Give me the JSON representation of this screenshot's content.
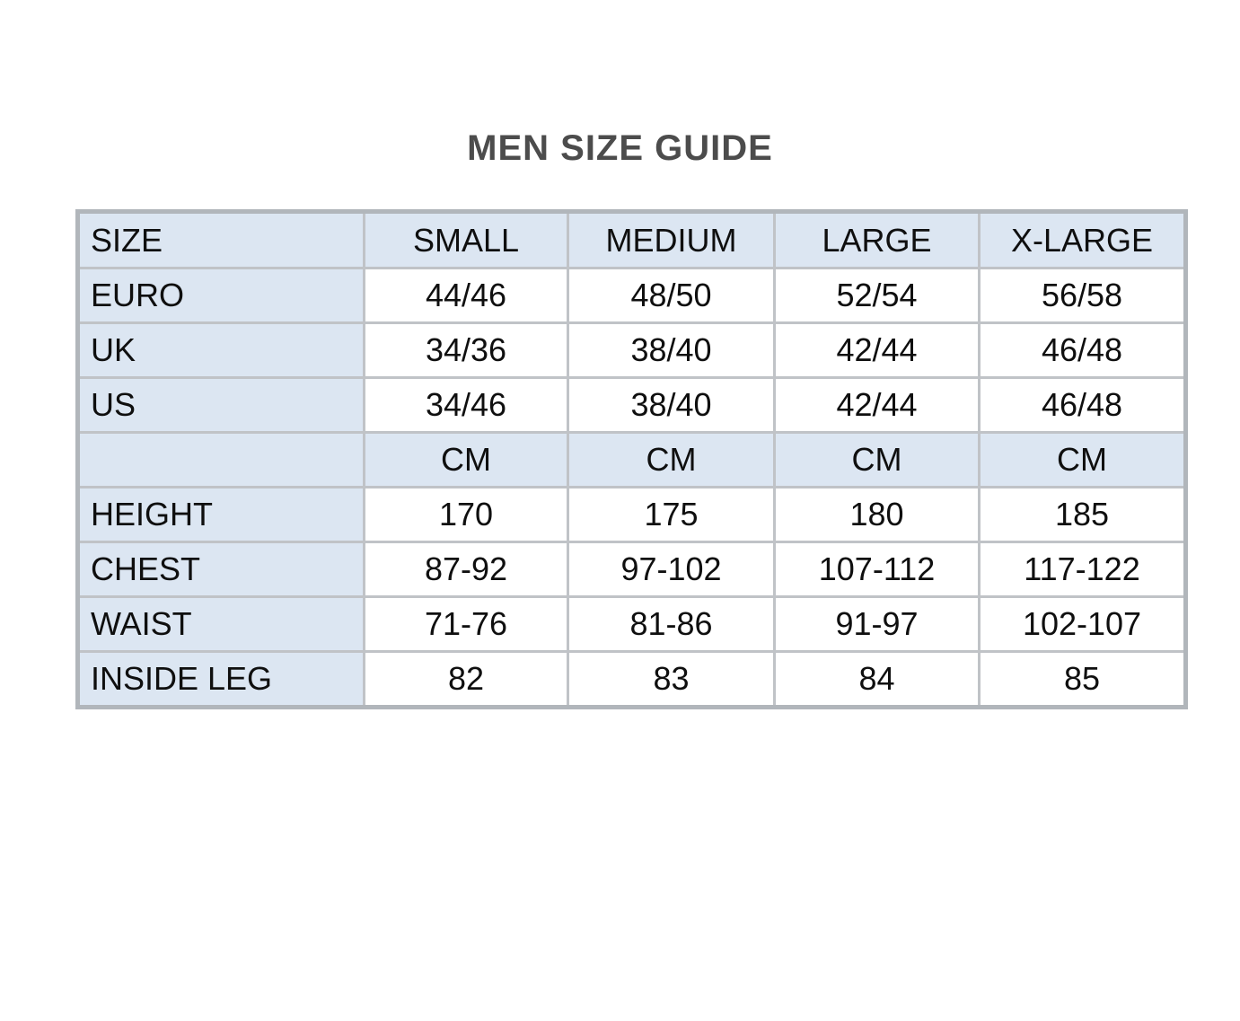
{
  "title": "MEN SIZE GUIDE",
  "colors": {
    "accent_bg": "#dce6f2",
    "cell_bg": "#ffffff",
    "border_inner": "#c0c3c7",
    "border_outer": "#b1b6bb",
    "text": "#0f0f0f",
    "title": "#4c4c4c",
    "page_bg": "#ffffff"
  },
  "chart_data": {
    "type": "table",
    "title": "MEN SIZE GUIDE",
    "columns": [
      "SIZE",
      "SMALL",
      "MEDIUM",
      "LARGE",
      "X-LARGE"
    ],
    "rows": [
      {
        "label": "EURO",
        "values": [
          "44/46",
          "48/50",
          "52/54",
          "56/58"
        ],
        "highlight": false
      },
      {
        "label": "UK",
        "values": [
          "34/36",
          "38/40",
          "42/44",
          "46/48"
        ],
        "highlight": false
      },
      {
        "label": "US",
        "values": [
          "34/46",
          "38/40",
          "42/44",
          "46/48"
        ],
        "highlight": false
      },
      {
        "label": "",
        "values": [
          "CM",
          "CM",
          "CM",
          "CM"
        ],
        "highlight": true
      },
      {
        "label": "HEIGHT",
        "values": [
          "170",
          "175",
          "180",
          "185"
        ],
        "highlight": false
      },
      {
        "label": "CHEST",
        "values": [
          "87-92",
          "97-102",
          "107-112",
          "117-122"
        ],
        "highlight": false
      },
      {
        "label": "WAIST",
        "values": [
          "71-76",
          "81-86",
          "91-97",
          "102-107"
        ],
        "highlight": false
      },
      {
        "label": "INSIDE LEG",
        "values": [
          "82",
          "83",
          "84",
          "85"
        ],
        "highlight": false
      }
    ]
  }
}
